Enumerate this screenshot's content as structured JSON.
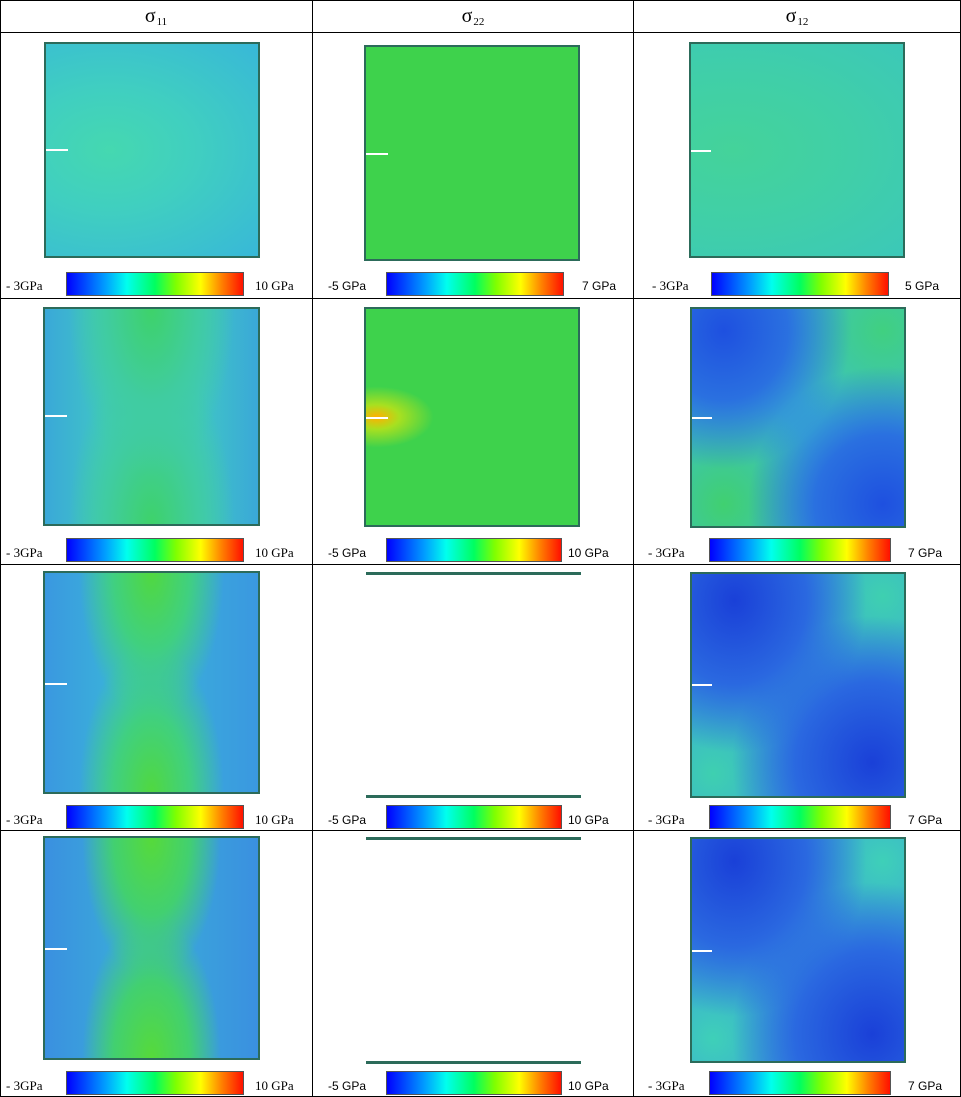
{
  "columns": [
    {
      "symbol": "σ",
      "sub": "11"
    },
    {
      "symbol": "σ",
      "sub": "22"
    },
    {
      "symbol": "σ",
      "sub": "12"
    }
  ],
  "rows": [
    {
      "cells": [
        {
          "min_label": "- 3GPa",
          "max_label": "10 GPa"
        },
        {
          "min_label": "-5 GPa",
          "max_label": "7 GPa"
        },
        {
          "min_label": "- 3GPa",
          "max_label": "5 GPa"
        }
      ]
    },
    {
      "cells": [
        {
          "min_label": "- 3GPa",
          "max_label": "10 GPa"
        },
        {
          "min_label": "-5 GPa",
          "max_label": "10  GPa"
        },
        {
          "min_label": "- 3GPa",
          "max_label": "7 GPa"
        }
      ]
    },
    {
      "cells": [
        {
          "min_label": "- 3GPa",
          "max_label": "10 GPa"
        },
        {
          "min_label": "-5 GPa",
          "max_label": "10  GPa"
        },
        {
          "min_label": "- 3GPa",
          "max_label": "7 GPa"
        }
      ]
    },
    {
      "cells": [
        {
          "min_label": "- 3GPa",
          "max_label": "10 GPa"
        },
        {
          "min_label": "-5 GPa",
          "max_label": "10  GPa"
        },
        {
          "min_label": "- 3GPa",
          "max_label": "7 GPa"
        }
      ]
    }
  ],
  "colors": {
    "plate_border": "#2c6b5a",
    "field_cyan": "#3fc8c8",
    "field_green": "#3cd24a",
    "field_blue": "#2a6fe0"
  }
}
